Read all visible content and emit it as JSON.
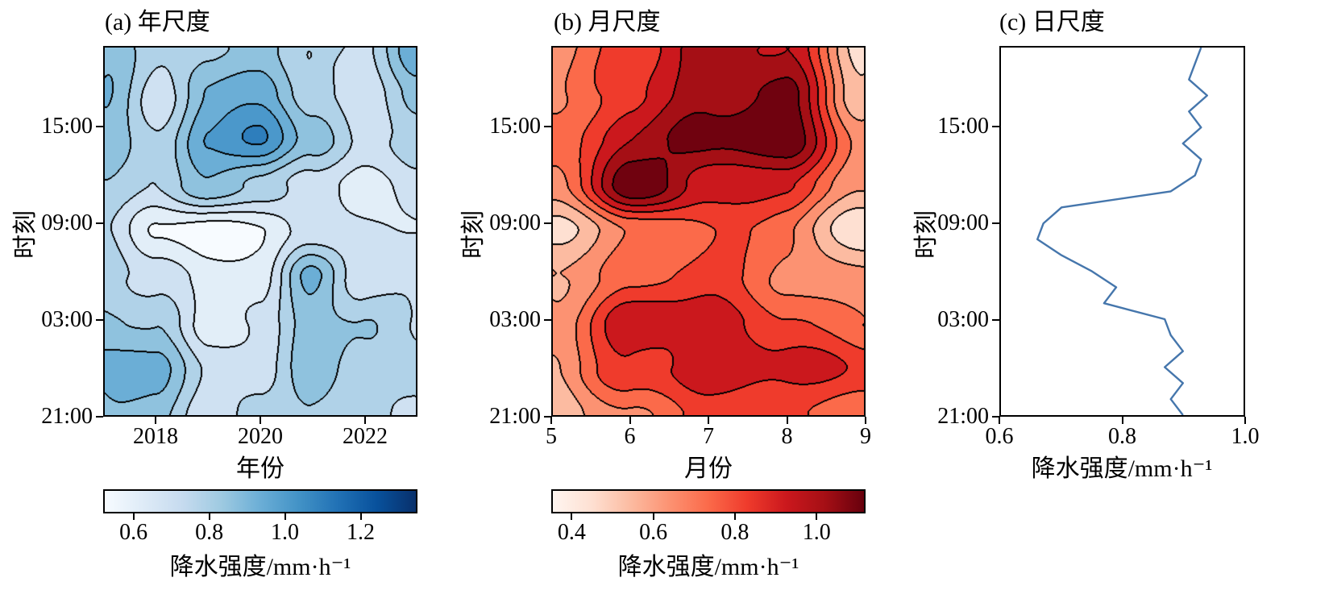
{
  "chart_data": [
    {
      "panel": "a",
      "type": "heatmap",
      "title": "(a) 年尺度",
      "xlabel": "年份",
      "ylabel": "时刻",
      "x_range": [
        2017,
        2023
      ],
      "x_ticks": [
        {
          "value": 2018,
          "label": "2018"
        },
        {
          "value": 2020,
          "label": "2020"
        },
        {
          "value": 2022,
          "label": "2022"
        }
      ],
      "y_axis": {
        "range": [
          0,
          23
        ],
        "description": "hours after 21:00, bottom=21:00 wrapping to top=20:00",
        "ticks": [
          {
            "hours": 0,
            "label": "21:00"
          },
          {
            "hours": 6,
            "label": "03:00"
          },
          {
            "hours": 12,
            "label": "09:00"
          },
          {
            "hours": 18,
            "label": "15:00"
          }
        ]
      },
      "grid": {
        "x": [
          2017,
          2018,
          2019,
          2020,
          2021,
          2022,
          2023
        ],
        "rows": "9 evenly spaced times from 21:00 (bottom) to 20:00 (top)",
        "values_rows_bottom_to_top": [
          [
            0.95,
            0.9,
            0.7,
            0.75,
            0.85,
            0.8,
            0.75
          ],
          [
            1.0,
            0.95,
            0.75,
            0.7,
            0.95,
            0.75,
            0.8
          ],
          [
            0.9,
            0.85,
            0.6,
            0.65,
            0.9,
            0.85,
            0.75
          ],
          [
            0.8,
            0.7,
            0.6,
            0.6,
            1.0,
            0.7,
            0.7
          ],
          [
            0.75,
            0.55,
            0.5,
            0.55,
            0.65,
            0.7,
            0.65
          ],
          [
            0.85,
            0.75,
            0.9,
            0.85,
            0.7,
            0.6,
            0.7
          ],
          [
            0.9,
            0.8,
            1.05,
            1.18,
            0.9,
            0.7,
            0.8
          ],
          [
            0.95,
            0.7,
            0.95,
            1.0,
            0.8,
            0.7,
            0.9
          ],
          [
            0.9,
            0.75,
            0.85,
            0.9,
            0.75,
            0.7,
            1.05
          ]
        ]
      },
      "contour": {
        "level_start": 0.45,
        "level_step": 0.1,
        "line_color": "#000000",
        "band_colors": [
          "#f7fbff",
          "#e2eef8",
          "#cfe1f2",
          "#b0d2e8",
          "#8fc2de",
          "#6baed6",
          "#4b98cb",
          "#2e7ebc",
          "#1562a9"
        ]
      },
      "colorbar": {
        "label": "降水强度/mm·h⁻¹",
        "range": [
          0.52,
          1.35
        ],
        "ticks": [
          {
            "value": 0.6,
            "label": "0.6"
          },
          {
            "value": 0.8,
            "label": "0.8"
          },
          {
            "value": 1.0,
            "label": "1.0"
          },
          {
            "value": 1.2,
            "label": "1.2"
          }
        ],
        "gradient": [
          "#f7fbff",
          "#deebf7",
          "#c6dbef",
          "#9ecae1",
          "#6baed6",
          "#4292c6",
          "#2171b5",
          "#08519c",
          "#08306b"
        ]
      }
    },
    {
      "panel": "b",
      "type": "heatmap",
      "title": "(b) 月尺度",
      "xlabel": "月份",
      "ylabel": "时刻",
      "x_range": [
        5,
        9
      ],
      "x_ticks": [
        {
          "value": 5,
          "label": "5"
        },
        {
          "value": 6,
          "label": "6"
        },
        {
          "value": 7,
          "label": "7"
        },
        {
          "value": 8,
          "label": "8"
        },
        {
          "value": 9,
          "label": "9"
        }
      ],
      "y_axis": {
        "range": [
          0,
          23
        ],
        "description": "hours after 21:00, bottom=21:00 wrapping to top=20:00",
        "ticks": [
          {
            "hours": 0,
            "label": "21:00"
          },
          {
            "hours": 6,
            "label": "03:00"
          },
          {
            "hours": 12,
            "label": "09:00"
          },
          {
            "hours": 18,
            "label": "15:00"
          }
        ]
      },
      "grid": {
        "x": [
          5,
          6,
          7,
          8,
          9
        ],
        "rows": "9 evenly spaced times from 21:00 (bottom) to 20:00 (top)",
        "values_rows_bottom_to_top": [
          [
            0.55,
            0.72,
            0.8,
            0.82,
            0.75
          ],
          [
            0.62,
            0.85,
            0.97,
            0.92,
            0.87
          ],
          [
            0.68,
            0.97,
            0.92,
            0.82,
            0.72
          ],
          [
            0.62,
            0.75,
            0.85,
            0.72,
            0.6
          ],
          [
            0.48,
            0.72,
            0.8,
            0.72,
            0.45
          ],
          [
            0.68,
            1.12,
            0.95,
            0.9,
            0.62
          ],
          [
            0.72,
            1.0,
            1.12,
            1.12,
            0.68
          ],
          [
            0.68,
            0.88,
            1.0,
            1.12,
            0.55
          ],
          [
            0.62,
            0.85,
            1.05,
            0.95,
            0.5
          ]
        ]
      },
      "contour": {
        "level_start": 0.35,
        "level_step": 0.09,
        "line_color": "#000000",
        "band_colors": [
          "#fff5f0",
          "#fee0d2",
          "#fcbba1",
          "#fc9272",
          "#fb6a4a",
          "#ef3b2c",
          "#cb181d",
          "#a50f15",
          "#70020f"
        ]
      },
      "colorbar": {
        "label": "降水强度/mm·h⁻¹",
        "range": [
          0.35,
          1.12
        ],
        "ticks": [
          {
            "value": 0.4,
            "label": "0.4"
          },
          {
            "value": 0.6,
            "label": "0.6"
          },
          {
            "value": 0.8,
            "label": "0.8"
          },
          {
            "value": 1.0,
            "label": "1.0"
          }
        ],
        "gradient": [
          "#fff5f0",
          "#fee0d2",
          "#fcbba1",
          "#fc9272",
          "#fb6a4a",
          "#ef3b2c",
          "#cb181d",
          "#a50f15",
          "#67000d"
        ]
      }
    },
    {
      "panel": "c",
      "type": "line",
      "title": "(c) 日尺度",
      "xlabel": "降水强度/mm·h⁻¹",
      "ylabel": "时刻",
      "x_range": [
        0.6,
        1.0
      ],
      "x_ticks": [
        {
          "value": 0.6,
          "label": "0.6"
        },
        {
          "value": 0.8,
          "label": "0.8"
        },
        {
          "value": 1.0,
          "label": "1.0"
        }
      ],
      "y_axis": {
        "range": [
          0,
          23
        ],
        "description": "hours after 21:00, bottom=21:00 wrapping to top=20:00",
        "ticks": [
          {
            "hours": 0,
            "label": "21:00"
          },
          {
            "hours": 6,
            "label": "03:00"
          },
          {
            "hours": 12,
            "label": "09:00"
          },
          {
            "hours": 18,
            "label": "15:00"
          }
        ]
      },
      "series": {
        "name": "降水强度",
        "line_color": "#4576ac",
        "points": "24 hourly values from 21:00 (bottom) to 20:00 (top)",
        "values_bottom_to_top": [
          0.9,
          0.88,
          0.9,
          0.87,
          0.9,
          0.88,
          0.87,
          0.77,
          0.79,
          0.75,
          0.7,
          0.66,
          0.67,
          0.7,
          0.88,
          0.92,
          0.93,
          0.9,
          0.93,
          0.91,
          0.94,
          0.91,
          0.92,
          0.93
        ]
      }
    }
  ]
}
